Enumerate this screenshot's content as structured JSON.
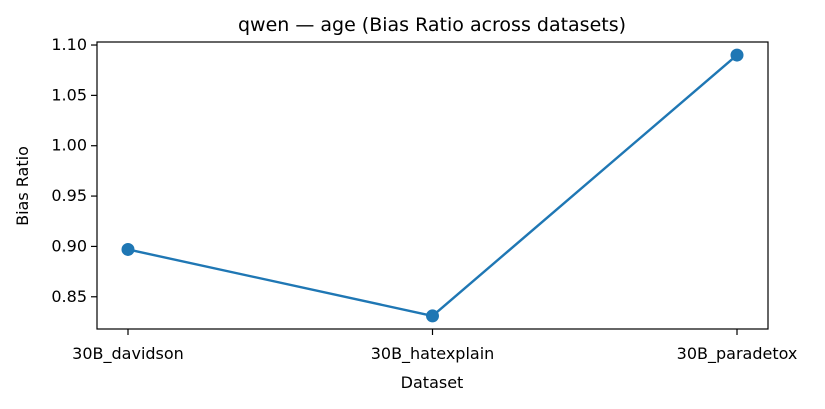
{
  "chart_data": {
    "type": "line",
    "title": "qwen — age (Bias Ratio across datasets)",
    "xlabel": "Dataset",
    "ylabel": "Bias Ratio",
    "categories": [
      "30B_davidson",
      "30B_hatexplain",
      "30B_paradetox"
    ],
    "series": [
      {
        "values": [
          0.897,
          0.831,
          1.09
        ],
        "color": "#1f77b4",
        "marker": "circle"
      }
    ],
    "ylim": [
      0.818,
      1.103
    ],
    "yticks": [
      0.85,
      0.9,
      0.95,
      1.0,
      1.05,
      1.1
    ],
    "ytick_labels": [
      "0.85",
      "0.90",
      "0.95",
      "1.00",
      "1.05",
      "1.10"
    ],
    "grid": false,
    "legend": "none"
  }
}
